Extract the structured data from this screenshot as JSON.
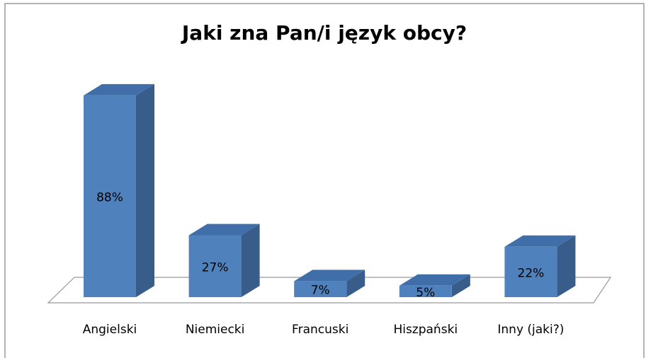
{
  "chart_data": {
    "type": "bar3d",
    "title": "Jaki zna Pan/i język obcy?",
    "categories": [
      "Angielski",
      "Niemiecki",
      "Francuski",
      "Hiszpański",
      "Inny (jaki?)"
    ],
    "values": [
      88,
      27,
      7,
      5,
      22
    ],
    "value_labels": [
      "88%",
      "27%",
      "7%",
      "5%",
      "22%"
    ],
    "color": "#4f81bd"
  }
}
